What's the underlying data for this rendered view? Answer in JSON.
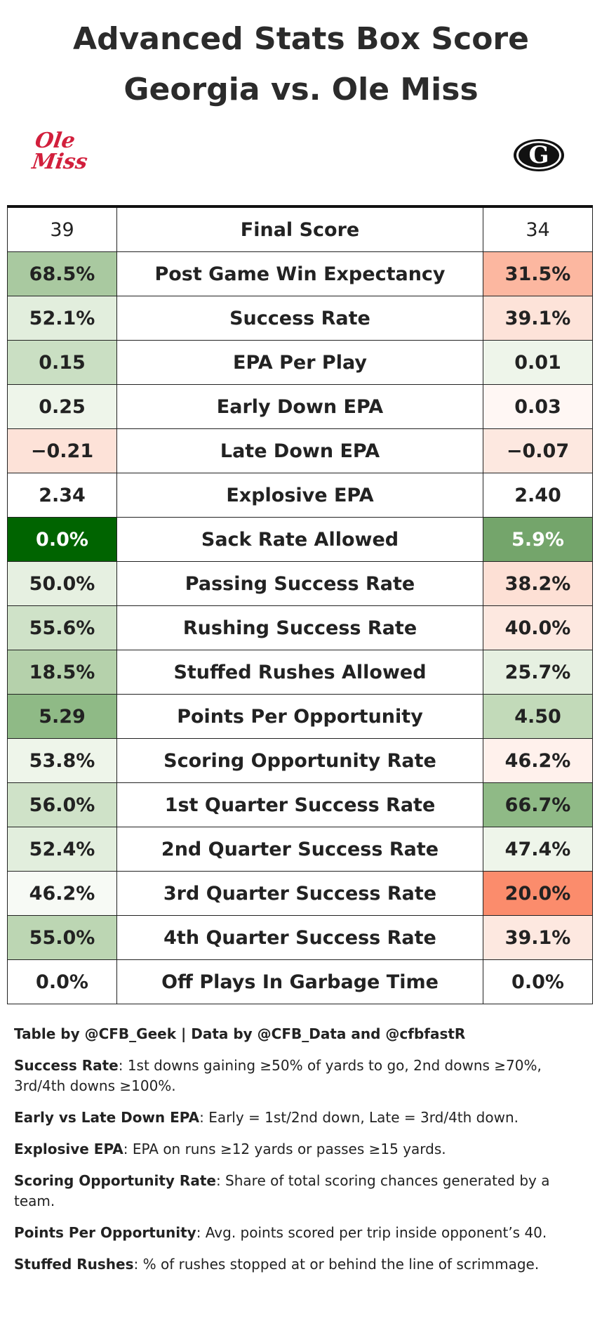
{
  "header": {
    "title_line1": "Advanced Stats Box Score",
    "title_line2": "Georgia vs. Ole Miss"
  },
  "logos": {
    "left": "Ole Miss",
    "right": "G"
  },
  "table": {
    "header": {
      "left": "39",
      "label": "Final Score",
      "right": "34"
    },
    "rows": [
      {
        "left": "68.5%",
        "label": "Post Game Win Expectancy",
        "right": "31.5%",
        "left_color": "#a9c9a0",
        "right_color": "#fcb7a0"
      },
      {
        "left": "52.1%",
        "label": "Success Rate",
        "right": "39.1%",
        "left_color": "#e2eedd",
        "right_color": "#fde3d9"
      },
      {
        "left": "0.15",
        "label": "EPA Per Play",
        "right": "0.01",
        "left_color": "#cadfc3",
        "right_color": "#eef5ea"
      },
      {
        "left": "0.25",
        "label": "Early Down EPA",
        "right": "0.03",
        "left_color": "#eef5ea",
        "right_color": "#fff7f4"
      },
      {
        "left": "−0.21",
        "label": "Late Down EPA",
        "right": "−0.07",
        "left_color": "#fde2d8",
        "right_color": "#fde8e0"
      },
      {
        "left": "2.34",
        "label": "Explosive EPA",
        "right": "2.40",
        "left_color": "#ffffff",
        "right_color": "#ffffff"
      },
      {
        "left": "0.0%",
        "label": "Sack Rate Allowed",
        "right": "5.9%",
        "left_color": "#006400",
        "right_color": "#74a56b"
      },
      {
        "left": "50.0%",
        "label": "Passing Success Rate",
        "right": "38.2%",
        "left_color": "#e6f0e1",
        "right_color": "#fde0d5"
      },
      {
        "left": "55.6%",
        "label": "Rushing Success Rate",
        "right": "40.0%",
        "left_color": "#cfe2c8",
        "right_color": "#fde8e0"
      },
      {
        "left": "18.5%",
        "label": "Stuffed Rushes Allowed",
        "right": "25.7%",
        "left_color": "#b5d1ab",
        "right_color": "#e6f0e1"
      },
      {
        "left": "5.29",
        "label": "Points Per Opportunity",
        "right": "4.50",
        "left_color": "#8fba86",
        "right_color": "#c2dab9"
      },
      {
        "left": "53.8%",
        "label": "Scoring Opportunity Rate",
        "right": "46.2%",
        "left_color": "#eef5ea",
        "right_color": "#fff1ec"
      },
      {
        "left": "56.0%",
        "label": "1st Quarter Success Rate",
        "right": "66.7%",
        "left_color": "#cfe2c8",
        "right_color": "#8fba86"
      },
      {
        "left": "52.4%",
        "label": "2nd Quarter Success Rate",
        "right": "47.4%",
        "left_color": "#e2eedd",
        "right_color": "#eef5ea"
      },
      {
        "left": "46.2%",
        "label": "3rd Quarter Success Rate",
        "right": "20.0%",
        "left_color": "#f7faf5",
        "right_color": "#fb8c6c"
      },
      {
        "left": "55.0%",
        "label": "4th Quarter Success Rate",
        "right": "39.1%",
        "left_color": "#bcd6b3",
        "right_color": "#fde8e0"
      },
      {
        "left": "0.0%",
        "label": "Off Plays In Garbage Time",
        "right": "0.0%",
        "left_color": "#ffffff",
        "right_color": "#ffffff"
      }
    ]
  },
  "footer": {
    "credit": "Table by @CFB_Geek | Data by @CFB_Data and @cfbfastR",
    "notes": [
      {
        "term": "Success Rate",
        "text": ": 1st downs gaining ≥50% of yards to go, 2nd downs ≥70%, 3rd/4th downs ≥100%."
      },
      {
        "term": "Early vs Late Down EPA",
        "text": ": Early = 1st/2nd down, Late = 3rd/4th down."
      },
      {
        "term": "Explosive EPA",
        "text": ": EPA on runs ≥12 yards or passes ≥15 yards."
      },
      {
        "term": "Scoring Opportunity Rate",
        "text": ": Share of total scoring chances generated by a team."
      },
      {
        "term": "Points Per Opportunity",
        "text": ": Avg. points scored per trip inside opponent’s 40."
      },
      {
        "term": "Stuffed Rushes",
        "text": ": % of rushes stopped at or behind the line of scrimmage."
      }
    ]
  }
}
